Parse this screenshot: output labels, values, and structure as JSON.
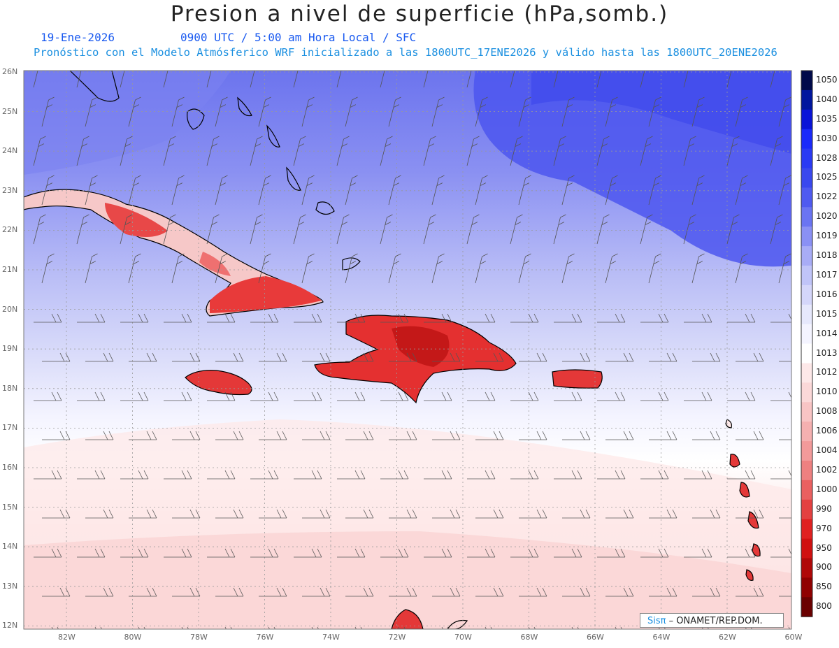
{
  "header": {
    "title": "Presion a nivel de superficie (hPa,somb.)",
    "date": "19-Ene-2026",
    "time_info": "0900 UTC / 5:00 am Hora Local / SFC",
    "forecast_info": "Pronóstico con el Modelo Atmósferico WRF inicializado a las 1800UTC_17ENE2026 y válido hasta las  1800UTC_20ENE2026"
  },
  "map": {
    "lat_labels": [
      "26N",
      "25N",
      "24N",
      "23N",
      "22N",
      "21N",
      "20N",
      "19N",
      "18N",
      "17N",
      "16N",
      "15N",
      "14N",
      "13N",
      "12N"
    ],
    "lon_labels": [
      "82W",
      "80W",
      "78W",
      "76W",
      "74W",
      "72W",
      "70W",
      "68W",
      "66W",
      "64W",
      "62W",
      "60W"
    ],
    "colorbar": {
      "labels": [
        "1050",
        "1040",
        "1035",
        "1030",
        "1028",
        "1025",
        "1022",
        "1020",
        "1019",
        "1018",
        "1017",
        "1016",
        "1015",
        "1014",
        "1013",
        "1012",
        "1010",
        "1008",
        "1006",
        "1004",
        "1002",
        "1000",
        "990",
        "970",
        "950",
        "900",
        "850",
        "800"
      ],
      "colors": [
        "#000a4a",
        "#00169e",
        "#0a14d8",
        "#1a2afa",
        "#2a3af4",
        "#3a48ee",
        "#4f5af0",
        "#6a74f2",
        "#8a90f4",
        "#a8acf6",
        "#c0c4f8",
        "#d4d6fa",
        "#e6e8fc",
        "#f4f4ff",
        "#ffffff",
        "#fde8e8",
        "#fbd8d8",
        "#f8c4c4",
        "#f5b0b0",
        "#f29a9a",
        "#ee8080",
        "#ea6060",
        "#e44040",
        "#e02020",
        "#d01010",
        "#b00808",
        "#900000",
        "#6a0000"
      ]
    },
    "credit": {
      "logo": "Sisπ",
      "text": "– ONAMET/REP.DOM."
    }
  },
  "colors": {
    "title": "#222222",
    "date": "#1a5af0",
    "forecast": "#1a8fe0"
  }
}
